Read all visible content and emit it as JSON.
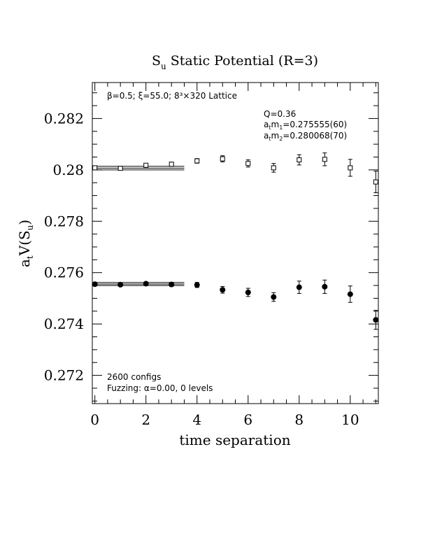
{
  "chart_data": {
    "type": "scatter",
    "title": "S",
    "title_sub": "u",
    "title_rest": " Static Potential (R=3)",
    "xlabel": "time separation",
    "ylabel_prefix": "a",
    "ylabel_prefix_sub": "t",
    "ylabel_mid": "V(S",
    "ylabel_mid_sub": "u",
    "ylabel_suffix": ")",
    "xlim": [
      -0.1,
      11.1
    ],
    "ylim": [
      0.2709,
      0.2834
    ],
    "x_ticks": [
      0,
      2,
      4,
      6,
      8,
      10
    ],
    "x_tick_labels": [
      "0",
      "2",
      "4",
      "6",
      "8",
      "10"
    ],
    "y_ticks": [
      0.272,
      0.274,
      0.276,
      0.278,
      0.28,
      0.282
    ],
    "y_tick_labels": [
      "0.272",
      "0.274",
      "0.276",
      "0.278",
      "0.28",
      "0.282"
    ],
    "grid": false,
    "annotations": {
      "lattice_info": "β=0.5; ξ=55.0; 8³×320 Lattice",
      "q_value": "Q=0.36",
      "m1_label": "a",
      "m1_sub": "t",
      "m1_mid": "m",
      "m1_mid_sub": "1",
      "m1_value": "=0.275555(60)",
      "m2_label": "a",
      "m2_sub": "t",
      "m2_mid": "m",
      "m2_mid_sub": "2",
      "m2_value": "=0.280068(70)",
      "configs": "2600 configs",
      "fuzzing": "Fuzzing: α=0.00, 0 levels"
    },
    "series": [
      {
        "marker": "open-square",
        "x": [
          0,
          1,
          2,
          3,
          4,
          5,
          6,
          7,
          8,
          9,
          10,
          11
        ],
        "y": [
          0.28008,
          0.28006,
          0.28018,
          0.28022,
          0.28035,
          0.28043,
          0.28025,
          0.28008,
          0.28039,
          0.28041,
          0.28008,
          0.27953
        ],
        "err": [
          3e-05,
          4e-05,
          6e-05,
          8e-05,
          9e-05,
          0.00012,
          0.00014,
          0.00017,
          0.0002,
          0.00025,
          0.00033,
          0.00042
        ],
        "fit": {
          "value": 0.280068,
          "err": 7e-05,
          "x_range": [
            0,
            3.5
          ]
        }
      },
      {
        "marker": "filled-circle",
        "x": [
          0,
          1,
          2,
          3,
          4,
          5,
          6,
          7,
          8,
          9,
          10,
          11
        ],
        "y": [
          0.27555,
          0.27553,
          0.27557,
          0.27554,
          0.27552,
          0.27533,
          0.27523,
          0.27505,
          0.27543,
          0.27545,
          0.27516,
          0.27416
        ],
        "err": [
          3e-05,
          4e-05,
          6e-05,
          8e-05,
          0.0001,
          0.00013,
          0.00016,
          0.00017,
          0.00024,
          0.00026,
          0.00032,
          0.00037
        ],
        "fit": {
          "value": 0.275555,
          "err": 6e-05,
          "x_range": [
            0,
            3.5
          ]
        }
      }
    ]
  }
}
